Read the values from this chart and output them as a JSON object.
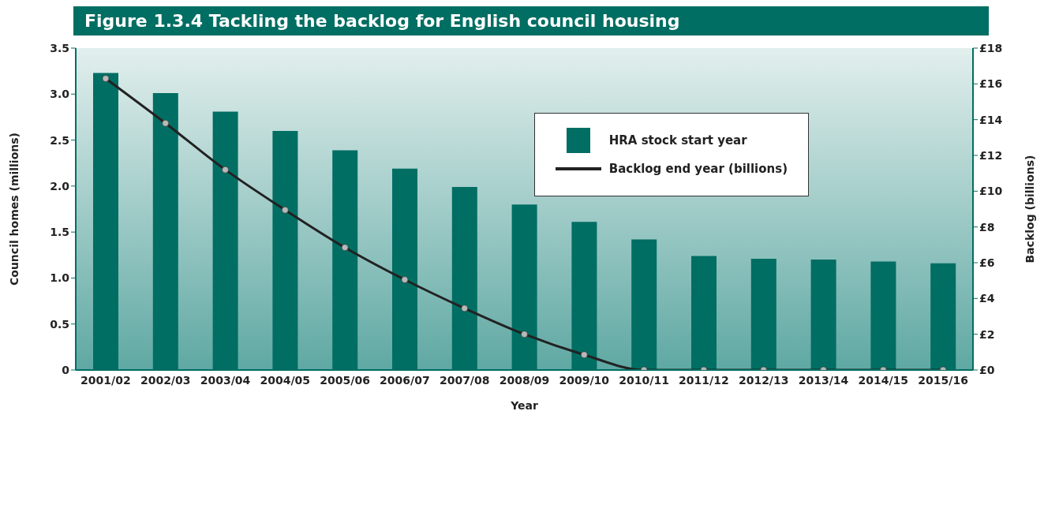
{
  "chart_data": {
    "type": "bar",
    "title": "Figure 1.3.4 Tackling the backlog for English council housing",
    "xlabel": "Year",
    "ylabel": "Council homes (millions)",
    "y2label": "Backlog (billions)",
    "categories": [
      "2001/02",
      "2002/03",
      "2003/04",
      "2004/05",
      "2005/06",
      "2006/07",
      "2007/08",
      "2008/09",
      "2009/10",
      "2010/11",
      "2011/12",
      "2012/13",
      "2013/14",
      "2014/15",
      "2015/16"
    ],
    "series": [
      {
        "name": "HRA stock start year",
        "color": "#006e63",
        "values": [
          3.23,
          3.01,
          2.81,
          2.6,
          2.39,
          2.19,
          1.99,
          1.8,
          1.61,
          1.42,
          1.24,
          1.21,
          1.2,
          1.18,
          1.16
        ]
      },
      {
        "name": "Backlog end year (billions)",
        "type": "line",
        "axis": "y2",
        "color": "#222222",
        "marker": "circle",
        "values": [
          16.3,
          13.8,
          11.2,
          8.95,
          6.85,
          5.05,
          3.45,
          2.0,
          0.85,
          0,
          0,
          0,
          0,
          0,
          0
        ]
      }
    ],
    "ylim": [
      0,
      3.5
    ],
    "yticks": [
      0,
      0.5,
      {
        "value": 1,
        "label": "1.0"
      },
      1.5,
      {
        "value": 2,
        "label": "2.0"
      },
      2.5,
      {
        "value": 3,
        "label": "3.0"
      },
      3.5
    ],
    "y2lim": [
      0,
      18
    ],
    "y2ticks": [
      {
        "value": 0,
        "label": "£0"
      },
      {
        "value": 2,
        "label": "£2"
      },
      {
        "value": 4,
        "label": "£4"
      },
      {
        "value": 6,
        "label": "£6"
      },
      {
        "value": 8,
        "label": "£8"
      },
      {
        "value": 10,
        "label": "£10"
      },
      {
        "value": 12,
        "label": "£12"
      },
      {
        "value": 14,
        "label": "£14"
      },
      {
        "value": 16,
        "label": "£16"
      },
      {
        "value": 18,
        "label": "£18"
      }
    ],
    "legend": "top right",
    "grid": false
  }
}
